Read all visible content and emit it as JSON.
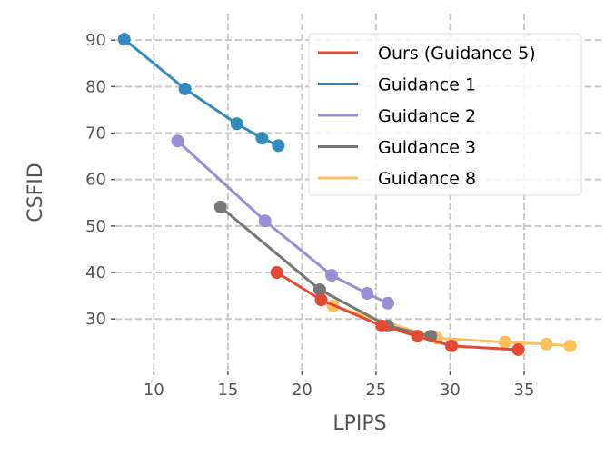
{
  "chart_data": {
    "type": "line",
    "title": "",
    "xlabel": "LPIPS",
    "ylabel": "CSFID",
    "xlim": [
      7.4,
      40.4
    ],
    "ylim": [
      18.9,
      95.7
    ],
    "xticks": [
      10,
      15,
      20,
      25,
      30,
      35
    ],
    "yticks": [
      30,
      40,
      50,
      60,
      70,
      80,
      90
    ],
    "grid": true,
    "legend_position": "top-right",
    "series": [
      {
        "name": "Ours (Guidance 5)",
        "color": "#E24A33",
        "x": [
          18.3,
          21.3,
          25.4,
          27.8,
          30.1,
          34.6
        ],
        "y": [
          40.0,
          34.1,
          28.5,
          26.3,
          24.2,
          23.4
        ]
      },
      {
        "name": "Guidance 1",
        "color": "#348ABD",
        "x": [
          8.0,
          12.1,
          15.6,
          17.3,
          18.4
        ],
        "y": [
          90.2,
          79.5,
          72.0,
          68.9,
          67.3
        ]
      },
      {
        "name": "Guidance 2",
        "color": "#988ED5",
        "x": [
          11.6,
          17.5,
          22.0,
          24.4,
          25.8
        ],
        "y": [
          68.3,
          51.1,
          39.4,
          35.5,
          33.4
        ]
      },
      {
        "name": "Guidance 3",
        "color": "#777777",
        "x": [
          14.5,
          21.2,
          25.8,
          28.7
        ],
        "y": [
          54.1,
          36.3,
          28.5,
          26.3
        ]
      },
      {
        "name": "Guidance 8",
        "color": "#FBC15E",
        "x": [
          22.1,
          29.1,
          33.7,
          36.5,
          38.1
        ],
        "y": [
          32.8,
          25.9,
          25.0,
          24.6,
          24.2
        ]
      }
    ]
  }
}
